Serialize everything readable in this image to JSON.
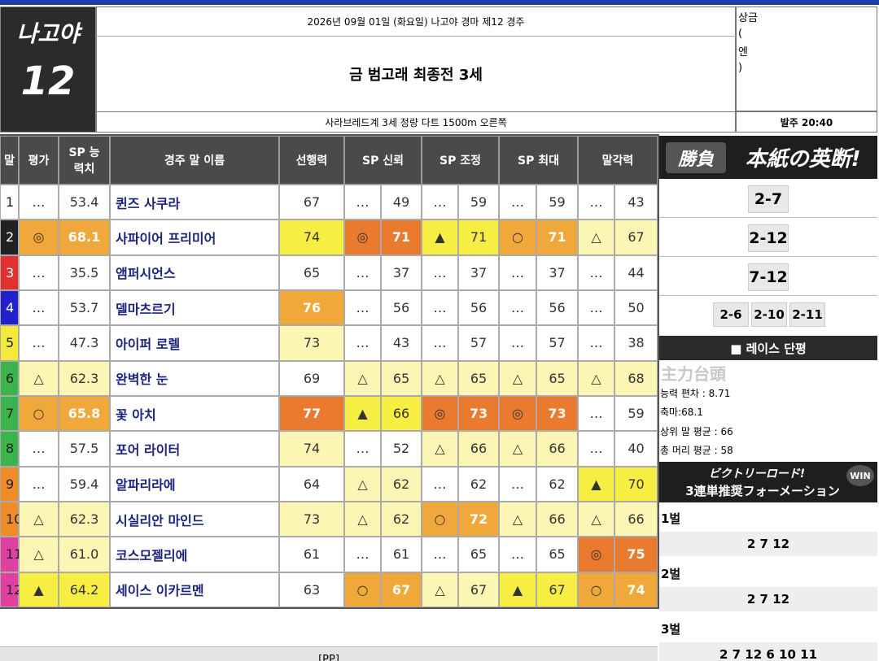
{
  "header": {
    "venue": "나고야",
    "race_no": "12",
    "date_line": "2026년 09월 01일 (화요일) 나고야 경마 제12 경주",
    "race_name": "금 범고래 최종전 3세",
    "conditions": "사라브레드계 3세 정량 다트 1500m 오른쪽",
    "prize": [
      "상금",
      "(",
      "엔",
      ")"
    ],
    "post_time": "발주 20:40"
  },
  "table": {
    "columns": [
      "말",
      "평가",
      "SP 능력치",
      "경주 말 이름",
      "선행력",
      "SP 신뢰",
      "SP 조정",
      "SP 최대",
      "말각력"
    ],
    "rows": [
      [
        "1",
        "…",
        "53.4",
        "퀸즈 사쿠라",
        "67",
        "…",
        "49",
        "…",
        "59",
        "…",
        "59",
        "…",
        "43"
      ],
      [
        "2",
        "◎",
        "68.1",
        "사파이어 프리미어",
        "74",
        "◎",
        "71",
        "▲",
        "71",
        "○",
        "71",
        "△",
        "67"
      ],
      [
        "3",
        "…",
        "35.5",
        "앰퍼시언스",
        "65",
        "…",
        "37",
        "…",
        "37",
        "…",
        "37",
        "…",
        "44"
      ],
      [
        "4",
        "…",
        "53.7",
        "델마츠르기",
        "76",
        "…",
        "56",
        "…",
        "56",
        "…",
        "56",
        "…",
        "50"
      ],
      [
        "5",
        "…",
        "47.3",
        "아이퍼 로렐",
        "73",
        "…",
        "43",
        "…",
        "57",
        "…",
        "57",
        "…",
        "38"
      ],
      [
        "6",
        "△",
        "62.3",
        "완벽한 눈",
        "69",
        "△",
        "65",
        "△",
        "65",
        "△",
        "65",
        "△",
        "68"
      ],
      [
        "7",
        "○",
        "65.8",
        "꽃 아치",
        "77",
        "▲",
        "66",
        "◎",
        "73",
        "◎",
        "73",
        "…",
        "59"
      ],
      [
        "8",
        "…",
        "57.5",
        "포어 라이터",
        "74",
        "…",
        "52",
        "△",
        "66",
        "△",
        "66",
        "…",
        "40"
      ],
      [
        "9",
        "…",
        "59.4",
        "알파리라에",
        "64",
        "△",
        "62",
        "…",
        "62",
        "…",
        "62",
        "▲",
        "70"
      ],
      [
        "10",
        "△",
        "62.3",
        "시실리안 마인드",
        "73",
        "△",
        "62",
        "○",
        "72",
        "△",
        "66",
        "△",
        "66"
      ],
      [
        "11",
        "△",
        "61.0",
        "코스모젤리에",
        "61",
        "…",
        "61",
        "…",
        "65",
        "…",
        "65",
        "◎",
        "75"
      ],
      [
        "12",
        "▲",
        "64.2",
        "세이스 이카르멘",
        "63",
        "○",
        "67",
        "△",
        "67",
        "▲",
        "67",
        "○",
        "74"
      ]
    ]
  },
  "sidebar": {
    "banner1_stamp": "勝負",
    "banner1_text": "本紙の英断!",
    "picks": [
      "2-7",
      "2-12",
      "7-12"
    ],
    "sub_picks": [
      "2-6",
      "2-10",
      "2-11"
    ],
    "review_title": "■ 레이스 단평",
    "review_stamp": "主力台頭",
    "review_lines": [
      "능력 편차 : 8.71",
      "축마:68.1",
      "상위 말 평균 : 66",
      "총 머리 평균 : 58"
    ],
    "banner2": [
      "ビクトリーロード!",
      "3連単推奨フォーメーション"
    ],
    "banner2_badge": "WIN",
    "formation": [
      {
        "label": "1벌",
        "value": "2 7 12"
      },
      {
        "label": "2벌",
        "value": "2 7 12"
      },
      {
        "label": "3벌",
        "value": "2 7 12 6 10 11"
      }
    ]
  },
  "footer": "[PP]"
}
